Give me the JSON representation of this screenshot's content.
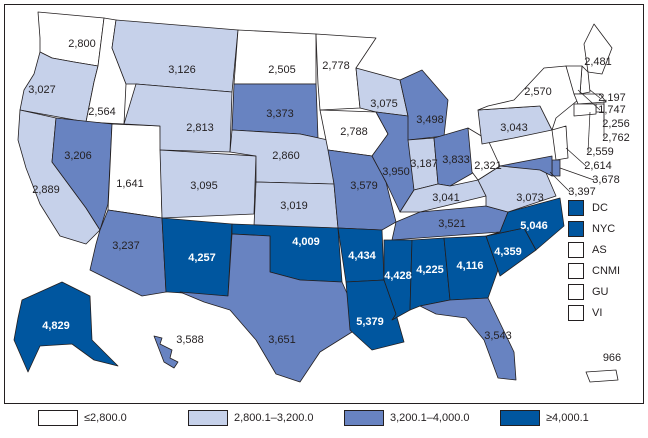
{
  "colors": {
    "bin0": "#ffffff",
    "bin1": "#c6d1ea",
    "bin2": "#6883c1",
    "bin3": "#00569f",
    "stroke": "#231f20"
  },
  "legend": {
    "bins": [
      {
        "label": "≤2,800.0"
      },
      {
        "label": "2,800.1–3,200.0"
      },
      {
        "label": "3,200.1–4,000.0"
      },
      {
        "label": "≥4,000.1"
      }
    ]
  },
  "territories": [
    {
      "code": "DC",
      "bin": 3
    },
    {
      "code": "NYC",
      "bin": 3
    },
    {
      "code": "AS",
      "bin": 0
    },
    {
      "code": "CNMI",
      "bin": 0
    },
    {
      "code": "GU",
      "bin": 0
    },
    {
      "code": "VI",
      "bin": 0
    }
  ],
  "chart_data": {
    "type": "map",
    "legend_placement": "bottom",
    "states": [
      {
        "id": "WA",
        "value": "2,800",
        "bin": 0
      },
      {
        "id": "OR",
        "value": "3,027",
        "bin": 1
      },
      {
        "id": "CA",
        "value": "2,889",
        "bin": 1
      },
      {
        "id": "ID",
        "value": "2,564",
        "bin": 0
      },
      {
        "id": "NV",
        "value": "3,206",
        "bin": 2
      },
      {
        "id": "UT",
        "value": "1,641",
        "bin": 0
      },
      {
        "id": "AZ",
        "value": "3,237",
        "bin": 2
      },
      {
        "id": "MT",
        "value": "3,126",
        "bin": 1
      },
      {
        "id": "WY",
        "value": "2,813",
        "bin": 1
      },
      {
        "id": "CO",
        "value": "3,095",
        "bin": 1
      },
      {
        "id": "NM",
        "value": "4,257",
        "bin": 3
      },
      {
        "id": "ND",
        "value": "2,505",
        "bin": 0
      },
      {
        "id": "SD",
        "value": "3,373",
        "bin": 2
      },
      {
        "id": "NE",
        "value": "2,860",
        "bin": 1
      },
      {
        "id": "KS",
        "value": "3,019",
        "bin": 1
      },
      {
        "id": "OK",
        "value": "4,009",
        "bin": 3
      },
      {
        "id": "TX",
        "value": "3,651",
        "bin": 2
      },
      {
        "id": "MN",
        "value": "2,778",
        "bin": 0
      },
      {
        "id": "IA",
        "value": "2,788",
        "bin": 0
      },
      {
        "id": "MO",
        "value": "3,579",
        "bin": 2
      },
      {
        "id": "AR",
        "value": "4,434",
        "bin": 3
      },
      {
        "id": "LA",
        "value": "5,379",
        "bin": 3
      },
      {
        "id": "WI",
        "value": "3,075",
        "bin": 1
      },
      {
        "id": "IL",
        "value": "3,950",
        "bin": 2
      },
      {
        "id": "MI",
        "value": "3,498",
        "bin": 2
      },
      {
        "id": "IN",
        "value": "3,187",
        "bin": 1
      },
      {
        "id": "OH",
        "value": "3,833",
        "bin": 2
      },
      {
        "id": "KY",
        "value": "3,041",
        "bin": 1
      },
      {
        "id": "TN",
        "value": "3,521",
        "bin": 2
      },
      {
        "id": "MS",
        "value": "4,428",
        "bin": 3
      },
      {
        "id": "AL",
        "value": "4,225",
        "bin": 3
      },
      {
        "id": "GA",
        "value": "4,116",
        "bin": 3
      },
      {
        "id": "FL",
        "value": "3,543",
        "bin": 2
      },
      {
        "id": "SC",
        "value": "4,359",
        "bin": 3
      },
      {
        "id": "NC",
        "value": "5,046",
        "bin": 3
      },
      {
        "id": "VA",
        "value": "3,073",
        "bin": 1
      },
      {
        "id": "WV",
        "value": "2,321",
        "bin": 0
      },
      {
        "id": "PA",
        "value": "3,043",
        "bin": 1
      },
      {
        "id": "NY",
        "value": "2,570",
        "bin": 0
      },
      {
        "id": "ME",
        "value": "2,481",
        "bin": 0
      },
      {
        "id": "NH",
        "value": "2,197",
        "bin": 0
      },
      {
        "id": "VT",
        "value": "1,747",
        "bin": 0
      },
      {
        "id": "MA",
        "value": "2,256",
        "bin": 0
      },
      {
        "id": "RI",
        "value": "2,762",
        "bin": 0
      },
      {
        "id": "CT",
        "value": "2,559",
        "bin": 0
      },
      {
        "id": "NJ",
        "value": "2,614",
        "bin": 0
      },
      {
        "id": "DE",
        "value": "3,678",
        "bin": 2
      },
      {
        "id": "MD",
        "value": "3,397",
        "bin": 2
      },
      {
        "id": "AK",
        "value": "4,829",
        "bin": 3
      },
      {
        "id": "HI",
        "value": "3,588",
        "bin": 2
      },
      {
        "id": "PR",
        "value": "966",
        "bin": 0
      }
    ]
  }
}
